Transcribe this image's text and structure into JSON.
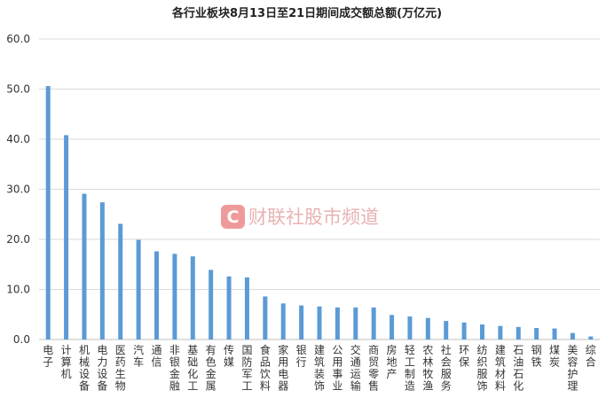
{
  "watermark": "财联社股市频道",
  "chart_data": {
    "type": "bar",
    "title": "各行业板块8月13日至21日期间成交额总额(万亿元)",
    "categories": [
      "电子",
      "计算机",
      "机械设备",
      "电力设备",
      "医药生物",
      "汽车",
      "通信",
      "非银金融",
      "基础化工",
      "有色金属",
      "传媒",
      "国防军工",
      "食品饮料",
      "家用电器",
      "银行",
      "建筑装饰",
      "公用事业",
      "交通运输",
      "商贸零售",
      "房地产",
      "轻工制造",
      "农林牧渔",
      "社会服务",
      "环保",
      "纺织服饰",
      "建筑材料",
      "石油石化",
      "钢铁",
      "煤炭",
      "美容护理",
      "综合"
    ],
    "values": [
      50.6,
      40.8,
      29.1,
      27.4,
      23.1,
      19.9,
      17.6,
      17.1,
      16.6,
      13.9,
      12.6,
      12.4,
      8.6,
      7.2,
      6.8,
      6.6,
      6.4,
      6.4,
      6.4,
      4.9,
      4.6,
      4.3,
      3.7,
      3.4,
      3.0,
      2.7,
      2.5,
      2.3,
      2.2,
      1.3,
      0.6
    ],
    "yticks": [
      "0.0",
      "10.0",
      "20.0",
      "30.0",
      "40.0",
      "50.0",
      "60.0"
    ],
    "ylim": [
      0,
      60
    ],
    "grid": true,
    "bar_color": "#5b9bd5"
  }
}
